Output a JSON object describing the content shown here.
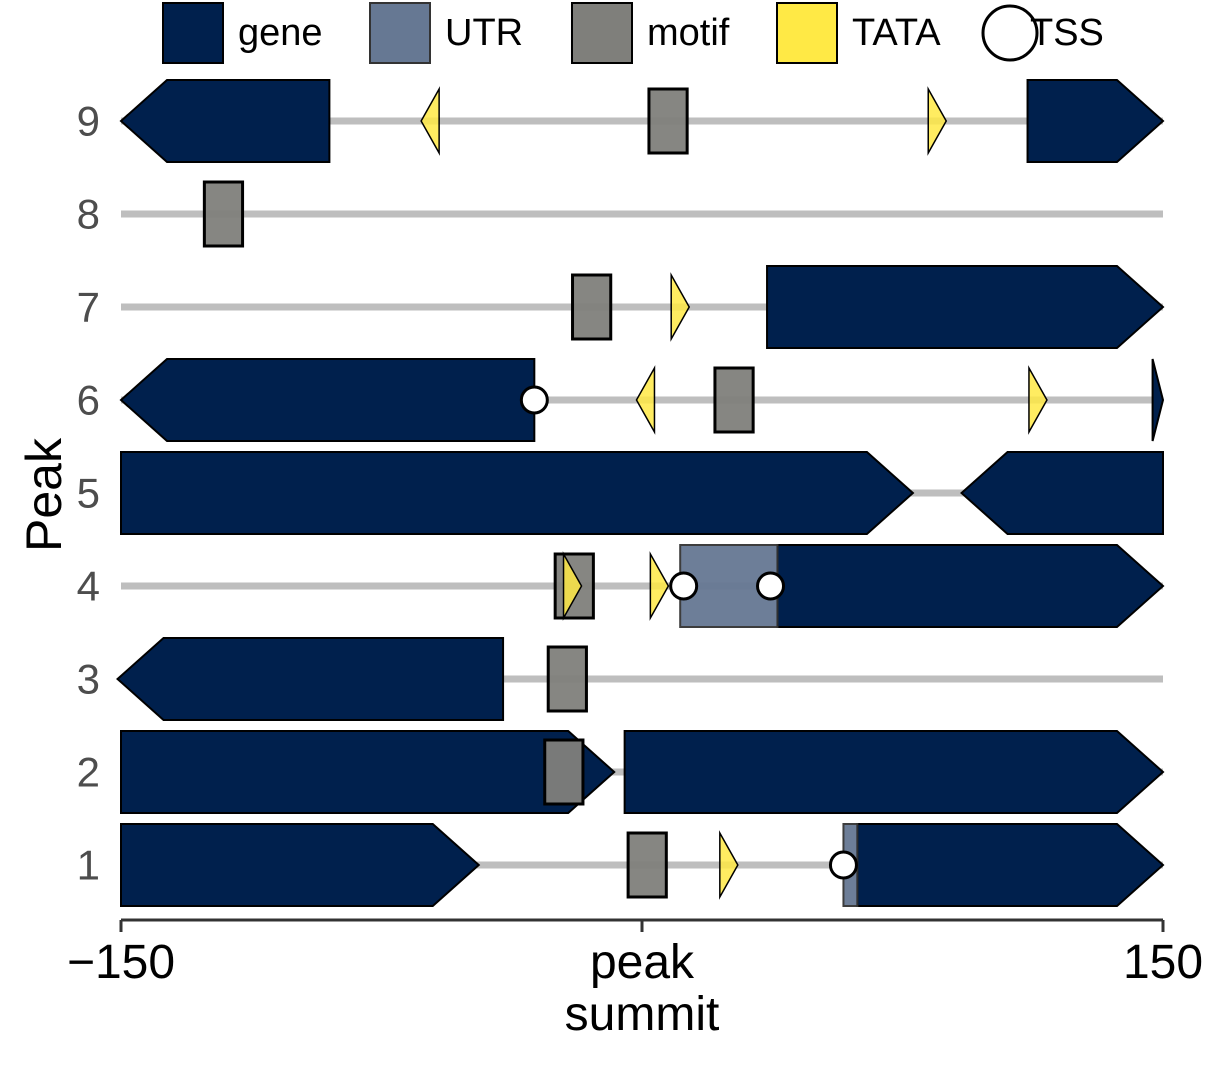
{
  "colors": {
    "gene": "#00204d",
    "utr": "#667893",
    "motif": "#7f7f7b",
    "tata": "#ffe945",
    "tss_fill": "#ffffff",
    "track": "#bebebe",
    "outline": "#000000",
    "axis_text": "#4d4d4d"
  },
  "chart_data": {
    "type": "genomic-tracks",
    "xlim": [
      -150,
      150
    ],
    "ylabel": "Peak",
    "x_ticks": [
      {
        "value": -150,
        "lines": [
          "−150"
        ]
      },
      {
        "value": 0,
        "lines": [
          "peak",
          "summit"
        ]
      },
      {
        "value": 150,
        "lines": [
          "150"
        ]
      }
    ],
    "legend": [
      {
        "key": "gene",
        "label": "gene"
      },
      {
        "key": "utr",
        "label": "UTR"
      },
      {
        "key": "motif",
        "label": "motif"
      },
      {
        "key": "tata",
        "label": "TATA"
      },
      {
        "key": "tss",
        "label": "TSS"
      }
    ],
    "peaks": [
      {
        "label": "1",
        "track": [
          -150,
          150
        ],
        "genes": [
          {
            "start": -150,
            "end": -47,
            "strand": "+"
          },
          {
            "start": 62,
            "end": 150,
            "strand": "+"
          }
        ],
        "utrs": [
          {
            "start": 58,
            "end": 62
          }
        ],
        "motifs": [
          {
            "start": -4,
            "end": 7
          }
        ],
        "tata": [
          {
            "pos": 25,
            "strand": "+"
          }
        ],
        "tss": [
          58
        ]
      },
      {
        "label": "2",
        "track": [
          -150,
          150
        ],
        "genes": [
          {
            "start": -150,
            "end": -8,
            "strand": "+"
          },
          {
            "start": -5,
            "end": 150,
            "strand": "+"
          }
        ],
        "utrs": [],
        "motifs": [
          {
            "start": -28,
            "end": -17
          }
        ],
        "tata": [],
        "tss": []
      },
      {
        "label": "3",
        "track": [
          -150,
          150
        ],
        "genes": [
          {
            "start": -151,
            "end": -40,
            "strand": "-"
          }
        ],
        "utrs": [],
        "motifs": [
          {
            "start": -27,
            "end": -16
          }
        ],
        "tata": [],
        "tss": []
      },
      {
        "label": "4",
        "track": [
          -150,
          150
        ],
        "genes": [
          {
            "start": 39,
            "end": 150,
            "strand": "+"
          }
        ],
        "utrs": [
          {
            "start": 11,
            "end": 39
          }
        ],
        "motifs": [
          {
            "start": -25,
            "end": -14
          }
        ],
        "tata": [
          {
            "pos": -20,
            "strand": "+"
          },
          {
            "pos": 5,
            "strand": "+"
          }
        ],
        "tss": [
          12,
          37
        ]
      },
      {
        "label": "5",
        "track": [
          -150,
          150
        ],
        "genes": [
          {
            "start": -150,
            "end": 78,
            "strand": "+"
          },
          {
            "start": 92,
            "end": 150,
            "strand": "-"
          }
        ],
        "utrs": [],
        "motifs": [],
        "tata": [],
        "tss": []
      },
      {
        "label": "6",
        "track": [
          -150,
          150
        ],
        "genes": [
          {
            "start": -150,
            "end": -31,
            "strand": "-"
          },
          {
            "start": 147,
            "end": 150,
            "strand": "+"
          }
        ],
        "utrs": [],
        "motifs": [
          {
            "start": 21,
            "end": 32
          }
        ],
        "tata": [
          {
            "pos": 1,
            "strand": "-"
          },
          {
            "pos": 114,
            "strand": "+"
          }
        ],
        "tss": [
          -31
        ]
      },
      {
        "label": "7",
        "track": [
          -150,
          150
        ],
        "genes": [
          {
            "start": 36,
            "end": 150,
            "strand": "+"
          }
        ],
        "utrs": [],
        "motifs": [
          {
            "start": -20,
            "end": -9
          }
        ],
        "tata": [
          {
            "pos": 11,
            "strand": "+"
          }
        ],
        "tss": []
      },
      {
        "label": "8",
        "track": [
          -150,
          150
        ],
        "genes": [],
        "utrs": [],
        "motifs": [
          {
            "start": -126,
            "end": -115
          }
        ],
        "tata": [],
        "tss": []
      },
      {
        "label": "9",
        "track": [
          -150,
          150
        ],
        "genes": [
          {
            "start": -150,
            "end": -90,
            "strand": "-"
          },
          {
            "start": 111,
            "end": 150,
            "strand": "+"
          }
        ],
        "utrs": [],
        "motifs": [
          {
            "start": 2,
            "end": 13
          }
        ],
        "tata": [
          {
            "pos": -61,
            "strand": "-"
          },
          {
            "pos": 85,
            "strand": "+"
          }
        ],
        "tss": []
      }
    ]
  }
}
